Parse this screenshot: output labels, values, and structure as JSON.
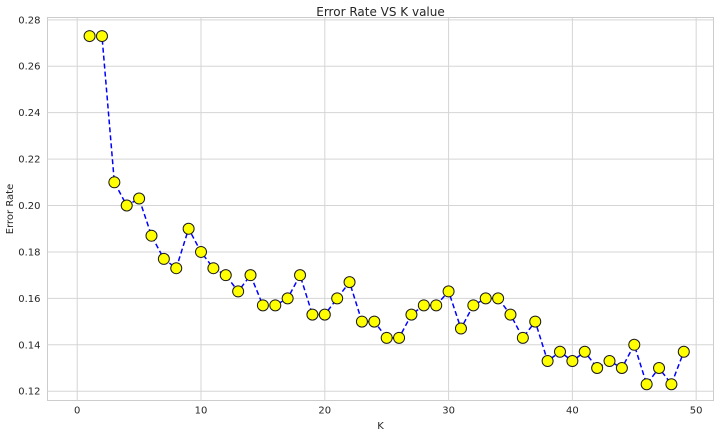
{
  "chart_data": {
    "type": "line",
    "title": "Error Rate VS K value",
    "xlabel": "K",
    "ylabel": "Error Rate",
    "xlim": [
      -2.4,
      51.4
    ],
    "ylim": [
      0.116,
      0.281
    ],
    "xticks": [
      0,
      10,
      20,
      30,
      40,
      50
    ],
    "yticks": [
      0.12,
      0.14,
      0.16,
      0.18,
      0.2,
      0.22,
      0.24,
      0.26,
      0.28
    ],
    "ytick_labels": [
      "0.12",
      "0.14",
      "0.16",
      "0.18",
      "0.20",
      "0.22",
      "0.24",
      "0.26",
      "0.28"
    ],
    "grid": true,
    "line_style": "dashed",
    "colors": {
      "line": "#0000ff",
      "marker_fill": "#ffff00",
      "marker_edge": "#1a1a1a",
      "grid": "#d5d5d5",
      "frame": "#cccccc"
    },
    "series": [
      {
        "x": [
          1,
          2,
          3,
          4,
          5,
          6,
          7,
          8,
          9,
          10,
          11,
          12,
          13,
          14,
          15,
          16,
          17,
          18,
          19,
          20,
          21,
          22,
          23,
          24,
          25,
          26,
          27,
          28,
          29,
          30,
          31,
          32,
          33,
          34,
          35,
          36,
          37,
          38,
          39,
          40,
          41,
          42,
          43,
          44,
          45,
          46,
          47,
          48,
          49
        ],
        "values": [
          0.273,
          0.273,
          0.21,
          0.2,
          0.203,
          0.187,
          0.177,
          0.173,
          0.19,
          0.18,
          0.173,
          0.17,
          0.163,
          0.17,
          0.157,
          0.157,
          0.16,
          0.17,
          0.153,
          0.153,
          0.16,
          0.167,
          0.15,
          0.15,
          0.143,
          0.143,
          0.153,
          0.157,
          0.157,
          0.163,
          0.147,
          0.157,
          0.16,
          0.16,
          0.153,
          0.143,
          0.15,
          0.133,
          0.137,
          0.133,
          0.137,
          0.13,
          0.133,
          0.13,
          0.14,
          0.123,
          0.13,
          0.123,
          0.137
        ]
      }
    ]
  }
}
